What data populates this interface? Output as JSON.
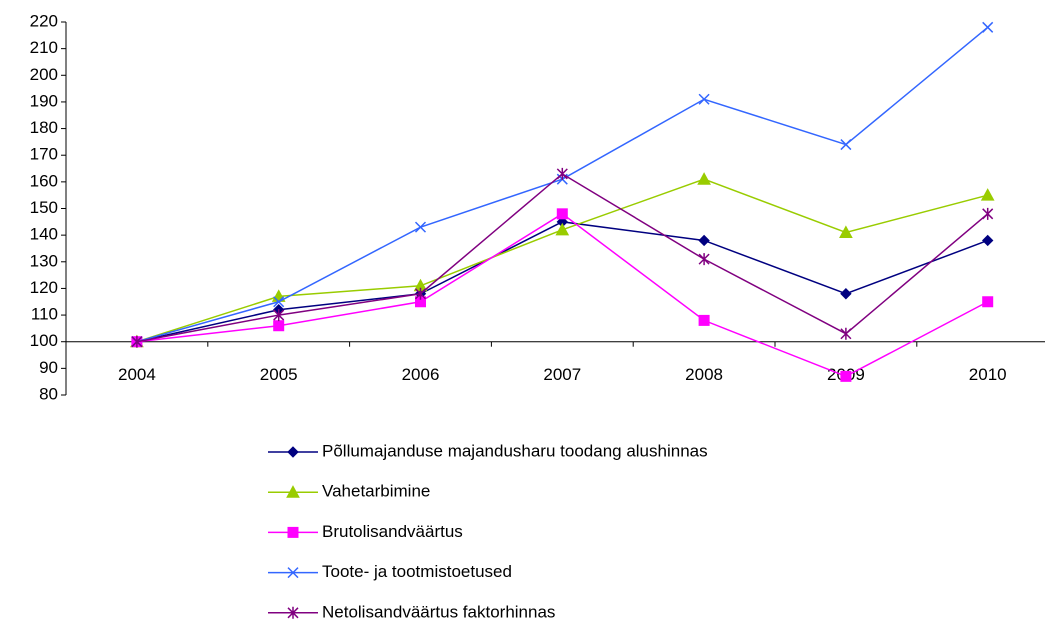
{
  "chart_data": {
    "type": "line",
    "categories": [
      "2004",
      "2005",
      "2006",
      "2007",
      "2008",
      "2009",
      "2010"
    ],
    "series": [
      {
        "name": "Põllumajanduse majandusharu toodang alushinnas",
        "color": "#000080",
        "marker": "diamond",
        "values": [
          100,
          112,
          118,
          145,
          138,
          118,
          138
        ]
      },
      {
        "name": "Vahetarbimine",
        "color": "#99cc00",
        "marker": "triangle",
        "values": [
          100,
          117,
          121,
          142,
          161,
          141,
          155
        ]
      },
      {
        "name": "Brutolisandväärtus",
        "color": "#ff00ff",
        "marker": "square",
        "values": [
          100,
          106,
          115,
          148,
          108,
          87,
          115
        ]
      },
      {
        "name": "Toote- ja tootmistoetused",
        "color": "#3366ff",
        "marker": "x",
        "values": [
          100,
          115,
          143,
          161,
          191,
          174,
          218
        ]
      },
      {
        "name": "Netolisandväärtus faktorhinnas",
        "color": "#800080",
        "marker": "star",
        "values": [
          100,
          110,
          118,
          163,
          131,
          103,
          148
        ]
      }
    ],
    "ylim": [
      80,
      220
    ],
    "yticks": [
      80,
      90,
      100,
      110,
      120,
      130,
      140,
      150,
      160,
      170,
      180,
      190,
      200,
      210,
      220
    ],
    "x_axis_crosses": 100,
    "grid": false,
    "legend": "bottom"
  }
}
